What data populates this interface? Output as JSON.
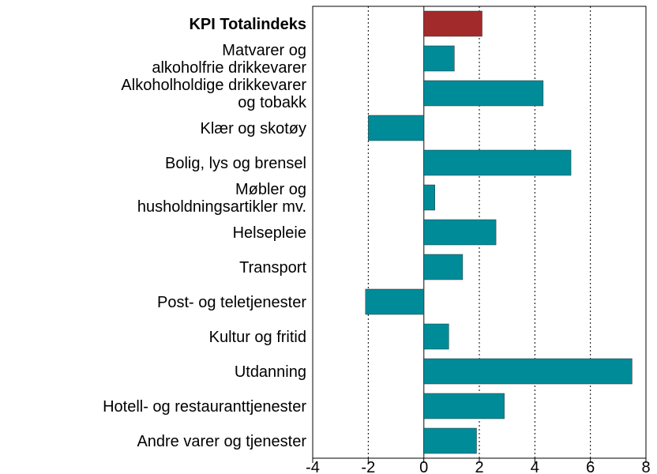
{
  "chart_data": {
    "type": "hbar",
    "categories": [
      [
        "KPI Totalindeks"
      ],
      [
        "Matvarer og",
        "alkoholfrie drikkevarer"
      ],
      [
        "Alkoholholdige drikkevarer",
        "og tobakk"
      ],
      [
        "Klær og skotøy"
      ],
      [
        "Bolig, lys og brensel"
      ],
      [
        "Møbler og",
        "husholdningsartikler mv."
      ],
      [
        "Helsepleie"
      ],
      [
        "Transport"
      ],
      [
        "Post- og teletjenester"
      ],
      [
        "Kultur og fritid"
      ],
      [
        "Utdanning"
      ],
      [
        "Hotell- og restauranttjenester"
      ],
      [
        "Andre varer og tjenester"
      ]
    ],
    "values": [
      2.1,
      1.1,
      4.3,
      -2.0,
      5.3,
      0.4,
      2.6,
      1.4,
      -2.1,
      0.9,
      7.5,
      2.9,
      1.9
    ],
    "color": "#008b99",
    "colors": [
      "#a32a2a",
      "#008b99",
      "#008b99",
      "#008b99",
      "#008b99",
      "#008b99",
      "#008b99",
      "#008b99",
      "#008b99",
      "#008b99",
      "#008b99",
      "#008b99",
      "#008b99"
    ],
    "xlim": [
      -4,
      8
    ],
    "xticks": [
      -4,
      -2,
      0,
      2,
      4,
      6,
      8
    ],
    "grid": true
  }
}
